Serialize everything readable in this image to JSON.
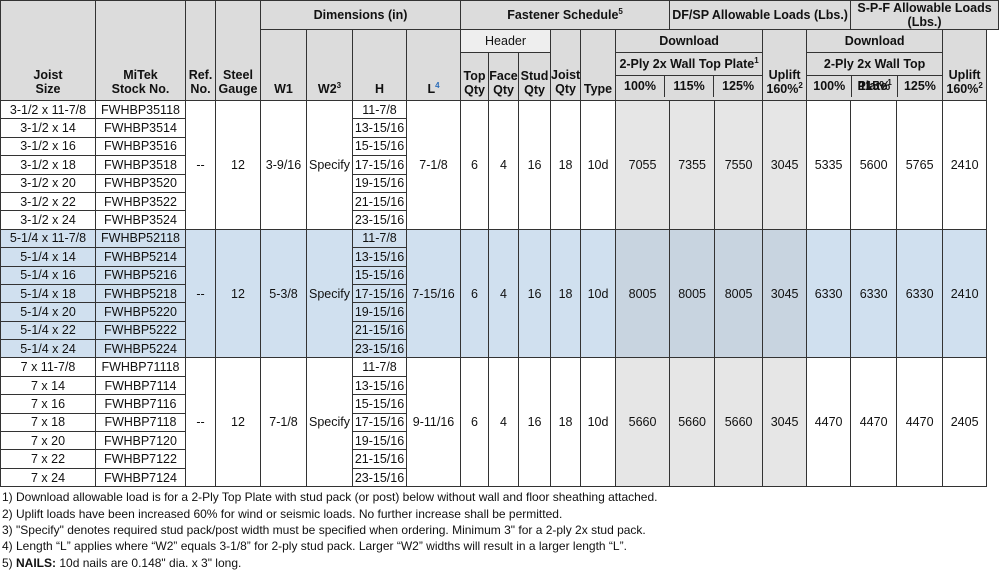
{
  "headers": {
    "joist_size": "Joist Size",
    "joist_size_l1": "Joist",
    "joist_size_l2": "Size",
    "mitek_l1": "MiTek",
    "mitek_l2": "Stock No.",
    "ref_l1": "Ref.",
    "ref_l2": "No.",
    "gauge_l1": "Steel",
    "gauge_l2": "Gauge",
    "dimensions": "Dimensions (in)",
    "w1": "W1",
    "w2": "W2",
    "w2_sup": "3",
    "h": "H",
    "l": "L",
    "l_sup": "4",
    "fastener": "Fastener Schedule",
    "fastener_sup": "5",
    "header": "Header",
    "top_l1": "Top",
    "top_l2": "Qty",
    "face_l1": "Face",
    "face_l2": "Qty",
    "stud_l1": "Stud",
    "stud_l2": "Qty",
    "joist_l1": "Joist",
    "joist_l2": "Qty",
    "type": "Type",
    "dfsp": "DF/SP Allowable Loads (Lbs.)",
    "spf": "S-P-F Allowable Loads (Lbs.)",
    "download": "Download",
    "plate": "2-Ply 2x Wall Top Plate",
    "plate_sup": "1",
    "uplift": "Uplift",
    "uplift160": "160%",
    "uplift_sup": "2",
    "p100": "100%",
    "p115": "115%",
    "p125": "125%"
  },
  "groups": [
    {
      "rows": [
        {
          "size": "3-1/2 x 11-7/8",
          "stock": "FWHBP35118",
          "h": "11-7/8"
        },
        {
          "size": "3-1/2 x 14",
          "stock": "FWHBP3514",
          "h": "13-15/16"
        },
        {
          "size": "3-1/2 x 16",
          "stock": "FWHBP3516",
          "h": "15-15/16"
        },
        {
          "size": "3-1/2 x 18",
          "stock": "FWHBP3518",
          "h": "17-15/16"
        },
        {
          "size": "3-1/2 x 20",
          "stock": "FWHBP3520",
          "h": "19-15/16"
        },
        {
          "size": "3-1/2 x 22",
          "stock": "FWHBP3522",
          "h": "21-15/16"
        },
        {
          "size": "3-1/2 x 24",
          "stock": "FWHBP3524",
          "h": "23-15/16"
        }
      ],
      "ref": "--",
      "gauge": "12",
      "w1": "3-9/16",
      "w2": "Specify",
      "l": "7-1/8",
      "top": "6",
      "face": "4",
      "stud": "16",
      "joist": "18",
      "type": "10d",
      "df100": "7055",
      "df115": "7355",
      "df125": "7550",
      "dfup": "3045",
      "spf100": "5335",
      "spf115": "5600",
      "spf125": "5765",
      "spfup": "2410"
    },
    {
      "rows": [
        {
          "size": "5-1/4 x 11-7/8",
          "stock": "FWHBP52118",
          "h": "11-7/8"
        },
        {
          "size": "5-1/4 x 14",
          "stock": "FWHBP5214",
          "h": "13-15/16"
        },
        {
          "size": "5-1/4 x 16",
          "stock": "FWHBP5216",
          "h": "15-15/16"
        },
        {
          "size": "5-1/4 x 18",
          "stock": "FWHBP5218",
          "h": "17-15/16"
        },
        {
          "size": "5-1/4 x 20",
          "stock": "FWHBP5220",
          "h": "19-15/16"
        },
        {
          "size": "5-1/4 x 22",
          "stock": "FWHBP5222",
          "h": "21-15/16"
        },
        {
          "size": "5-1/4 x 24",
          "stock": "FWHBP5224",
          "h": "23-15/16"
        }
      ],
      "ref": "--",
      "gauge": "12",
      "w1": "5-3/8",
      "w2": "Specify",
      "l": "7-15/16",
      "top": "6",
      "face": "4",
      "stud": "16",
      "joist": "18",
      "type": "10d",
      "df100": "8005",
      "df115": "8005",
      "df125": "8005",
      "dfup": "3045",
      "spf100": "6330",
      "spf115": "6330",
      "spf125": "6330",
      "spfup": "2410"
    },
    {
      "rows": [
        {
          "size": "7 x 11-7/8",
          "stock": "FWHBP71118",
          "h": "11-7/8"
        },
        {
          "size": "7 x 14",
          "stock": "FWHBP7114",
          "h": "13-15/16"
        },
        {
          "size": "7 x 16",
          "stock": "FWHBP7116",
          "h": "15-15/16"
        },
        {
          "size": "7 x 18",
          "stock": "FWHBP7118",
          "h": "17-15/16"
        },
        {
          "size": "7 x 20",
          "stock": "FWHBP7120",
          "h": "19-15/16"
        },
        {
          "size": "7 x 22",
          "stock": "FWHBP7122",
          "h": "21-15/16"
        },
        {
          "size": "7 x 24",
          "stock": "FWHBP7124",
          "h": "23-15/16"
        }
      ],
      "ref": "--",
      "gauge": "12",
      "w1": "7-1/8",
      "w2": "Specify",
      "l": "9-11/16",
      "top": "6",
      "face": "4",
      "stud": "16",
      "joist": "18",
      "type": "10d",
      "df100": "5660",
      "df115": "5660",
      "df125": "5660",
      "dfup": "3045",
      "spf100": "4470",
      "spf115": "4470",
      "spf125": "4470",
      "spfup": "2405"
    }
  ],
  "notes": {
    "n1": "1) Download allowable load is for a 2-Ply Top Plate with stud pack (or post) below without wall and floor sheathing attached.",
    "n2": "2) Uplift loads have been increased 60% for wind or seismic loads.  No further increase shall be permitted.",
    "n3": "3) \"Specify\" denotes required stud pack/post width must be specified when ordering. Minimum 3\" for a 2-ply 2x stud pack.",
    "n4": "4) Length “L” applies where “W2” equals 3-1/8” for 2-ply stud pack.  Larger “W2” widths will result in a larger length “L”.",
    "n5_prefix": "5) ",
    "n5_bold": "NAILS:",
    "n5_rest": " 10d nails are 0.148\" dia. x 3\" long."
  }
}
